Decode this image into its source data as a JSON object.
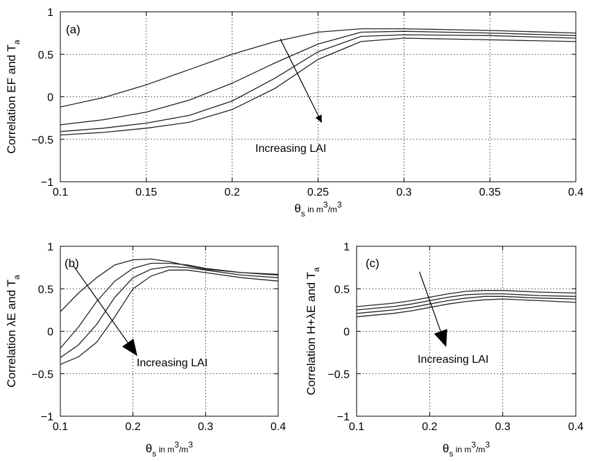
{
  "chart_data": [
    {
      "type": "line",
      "panel_label": "(a)",
      "annotation": "Increasing LAI",
      "xlabel": "θ_s in m^3/m^3",
      "ylabel": "Correlation EF and T_a",
      "xlim": [
        0.1,
        0.4
      ],
      "ylim": [
        -1,
        1
      ],
      "xticks": [
        "0.1",
        "0.15",
        "0.2",
        "0.25",
        "0.3",
        "0.35",
        "0.4"
      ],
      "yticks": [
        "−1",
        "−0.5",
        "0",
        "0.5",
        "1"
      ],
      "grid": true,
      "x": [
        0.1,
        0.125,
        0.15,
        0.175,
        0.2,
        0.225,
        0.25,
        0.275,
        0.3,
        0.35,
        0.4
      ],
      "series": [
        {
          "values": [
            -0.12,
            -0.01,
            0.14,
            0.32,
            0.5,
            0.65,
            0.76,
            0.8,
            0.8,
            0.78,
            0.75
          ]
        },
        {
          "values": [
            -0.33,
            -0.27,
            -0.18,
            -0.04,
            0.16,
            0.4,
            0.62,
            0.76,
            0.77,
            0.75,
            0.72
          ]
        },
        {
          "values": [
            -0.41,
            -0.37,
            -0.31,
            -0.22,
            -0.05,
            0.22,
            0.53,
            0.71,
            0.73,
            0.72,
            0.69
          ]
        },
        {
          "values": [
            -0.45,
            -0.42,
            -0.37,
            -0.3,
            -0.15,
            0.1,
            0.44,
            0.65,
            0.69,
            0.67,
            0.65
          ]
        }
      ]
    },
    {
      "type": "line",
      "panel_label": "(b)",
      "annotation": "Increasing LAI",
      "xlabel": "θ_s in m^3/m^3",
      "ylabel": "Correlation λE and T_a",
      "xlim": [
        0.1,
        0.4
      ],
      "ylim": [
        -1,
        1
      ],
      "xticks": [
        "0.1",
        "0.2",
        "0.3",
        "0.4"
      ],
      "yticks": [
        "−1",
        "−0.5",
        "0",
        "0.5",
        "1"
      ],
      "grid": true,
      "x": [
        0.1,
        0.125,
        0.15,
        0.175,
        0.2,
        0.225,
        0.25,
        0.275,
        0.3,
        0.35,
        0.4
      ],
      "series": [
        {
          "values": [
            0.23,
            0.45,
            0.63,
            0.78,
            0.84,
            0.85,
            0.82,
            0.77,
            0.73,
            0.69,
            0.67
          ]
        },
        {
          "values": [
            -0.2,
            0.05,
            0.35,
            0.59,
            0.74,
            0.8,
            0.8,
            0.78,
            0.74,
            0.69,
            0.66
          ]
        },
        {
          "values": [
            -0.31,
            -0.16,
            0.08,
            0.4,
            0.63,
            0.73,
            0.76,
            0.75,
            0.72,
            0.66,
            0.63
          ]
        },
        {
          "values": [
            -0.39,
            -0.3,
            -0.13,
            0.17,
            0.5,
            0.65,
            0.72,
            0.72,
            0.69,
            0.63,
            0.59
          ]
        }
      ]
    },
    {
      "type": "line",
      "panel_label": "(c)",
      "annotation": "Increasing LAI",
      "xlabel": "θ_s in m^3/m^3",
      "ylabel": "Correlation H+λE and T_a",
      "xlim": [
        0.1,
        0.4
      ],
      "ylim": [
        -1,
        1
      ],
      "xticks": [
        "0.1",
        "0.2",
        "0.3",
        "0.4"
      ],
      "yticks": [
        "−1",
        "−0.5",
        "0",
        "0.5",
        "1"
      ],
      "grid": true,
      "x": [
        0.1,
        0.125,
        0.15,
        0.175,
        0.2,
        0.225,
        0.25,
        0.275,
        0.3,
        0.35,
        0.4
      ],
      "series": [
        {
          "values": [
            0.29,
            0.31,
            0.33,
            0.36,
            0.4,
            0.44,
            0.47,
            0.48,
            0.48,
            0.46,
            0.45
          ]
        },
        {
          "values": [
            0.25,
            0.27,
            0.29,
            0.32,
            0.36,
            0.4,
            0.43,
            0.44,
            0.44,
            0.42,
            0.41
          ]
        },
        {
          "values": [
            0.21,
            0.23,
            0.25,
            0.28,
            0.32,
            0.36,
            0.39,
            0.41,
            0.41,
            0.39,
            0.38
          ]
        },
        {
          "values": [
            0.17,
            0.19,
            0.21,
            0.24,
            0.28,
            0.32,
            0.35,
            0.37,
            0.38,
            0.36,
            0.34
          ]
        }
      ]
    }
  ]
}
